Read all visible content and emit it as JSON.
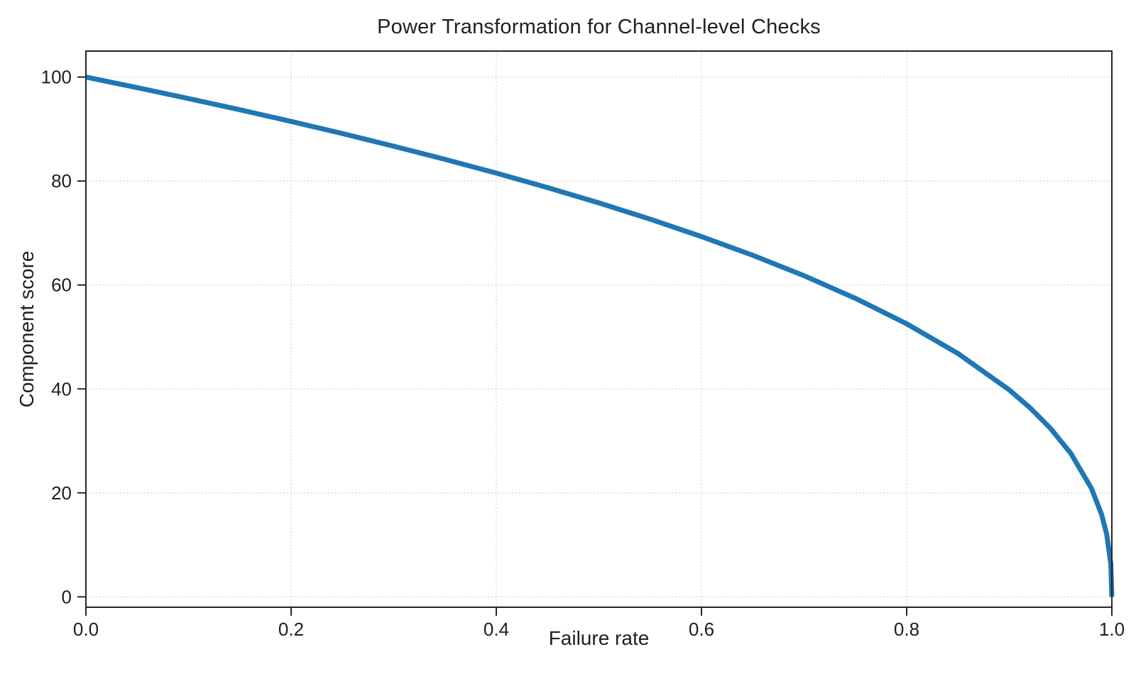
{
  "figure": {
    "background": "#ffffff"
  },
  "chart_data": {
    "type": "line",
    "title": "Power Transformation for Channel-level Checks",
    "xlabel": "Failure rate",
    "ylabel": "Component score",
    "xlim": [
      0,
      1
    ],
    "ylim": [
      -2,
      105
    ],
    "xticks": [
      0,
      0.2,
      0.4,
      0.6,
      0.8,
      1.0
    ],
    "xtick_labels": [
      "0.0",
      "0.2",
      "0.4",
      "0.6",
      "0.8",
      "1.0"
    ],
    "yticks": [
      0,
      20,
      40,
      60,
      80,
      100
    ],
    "ytick_labels": [
      "0",
      "20",
      "40",
      "60",
      "80",
      "100"
    ],
    "grid": true,
    "grid_style": "dotted",
    "legend": false,
    "line_color": "#1f77b4",
    "line_width": 7,
    "grid_color": "#cccccc",
    "spine_color": "#262626",
    "tick_color": "#262626",
    "text_color": "#1f1f1f",
    "series": [
      {
        "x": [
          0,
          0.05,
          0.1,
          0.15,
          0.2,
          0.25,
          0.3,
          0.35,
          0.4,
          0.45,
          0.5,
          0.55,
          0.6,
          0.65,
          0.7,
          0.75,
          0.8,
          0.85,
          0.9,
          0.92,
          0.94,
          0.96,
          0.98,
          0.99,
          0.995,
          0.999,
          1.0
        ],
        "y": [
          100,
          97.97,
          95.87,
          93.71,
          91.46,
          89.13,
          86.7,
          84.17,
          81.52,
          78.73,
          75.79,
          72.66,
          69.31,
          65.71,
          61.78,
          57.43,
          52.53,
          46.82,
          39.81,
          36.41,
          32.45,
          27.6,
          20.91,
          15.85,
          12.01,
          6.31,
          0
        ]
      }
    ]
  }
}
